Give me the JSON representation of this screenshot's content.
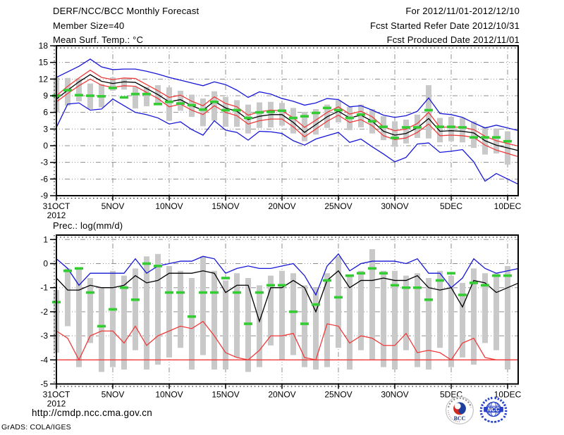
{
  "header": {
    "title": "DERF/NCC/BCC Monthly Forecast",
    "member_size": "Member Size=40",
    "for_range": "For 2012/11/01-2012/12/10",
    "refer_date": "Fcst Started Refer Date 2012/10/31",
    "produced_date": "Fcst Produced Date 2012/11/01"
  },
  "footer": {
    "url": "http://cmdp.ncc.cma.gov.cn",
    "credit": "GrADS: COLA/IGES",
    "bcc_label": "BCC",
    "ncc_label": "NCC"
  },
  "colors": {
    "blue": "#1616d8",
    "red": "#ef3b3b",
    "black": "#000000",
    "green": "#33cc33",
    "bar": "#c9c9c9",
    "grid": "#8f8f8f"
  },
  "chart_data": [
    {
      "name": "temperature-chart",
      "type": "line",
      "title": "Mean Surf. Temp.: °C",
      "x_axis": {
        "start": "31OCT2012",
        "end": "10DEC2012",
        "step_days": 1,
        "n_days": 41
      },
      "x_tick_labels": [
        "31OCT",
        "5NOV",
        "10NOV",
        "15NOV",
        "20NOV",
        "25NOV",
        "30NOV",
        "5DEC",
        "10DEC"
      ],
      "x_sub_label": "2012",
      "ylim": [
        -9,
        18
      ],
      "yticks": [
        18,
        15,
        12,
        9,
        6,
        3,
        0,
        -3,
        -6,
        -9
      ],
      "grid_yticks": [
        15,
        12,
        9,
        6,
        3,
        0,
        -3,
        -6
      ],
      "series": [
        {
          "name": "max-envelope-line",
          "color": "blue",
          "values": [
            12.3,
            13.3,
            14.3,
            15.6,
            14.2,
            13.7,
            13.8,
            13.8,
            13.4,
            12.9,
            12.3,
            11.8,
            11.3,
            10.8,
            11.5,
            11.0,
            10.0,
            8.7,
            9.7,
            9.3,
            8.5,
            8.0,
            7.3,
            7.7,
            8.5,
            8.3,
            7.0,
            7.2,
            6.4,
            5.5,
            5.1,
            5.4,
            6.2,
            8.6,
            5.8,
            5.6,
            5.1,
            4.1,
            3.2,
            3.7,
            3.2
          ]
        },
        {
          "name": "upper-spread-line",
          "color": "red",
          "values": [
            9.0,
            10.7,
            12.2,
            13.6,
            12.3,
            11.9,
            12.2,
            12.1,
            11.0,
            9.9,
            8.7,
            9.1,
            8.0,
            7.2,
            8.8,
            7.6,
            7.0,
            5.5,
            6.1,
            6.4,
            6.3,
            5.0,
            3.3,
            4.6,
            6.0,
            7.0,
            5.7,
            6.2,
            5.2,
            3.4,
            2.7,
            3.0,
            4.0,
            6.0,
            3.3,
            3.4,
            3.3,
            2.9,
            1.7,
            0.9,
            0.4
          ]
        },
        {
          "name": "lower-spread-line",
          "color": "red",
          "values": [
            7.9,
            9.4,
            10.8,
            12.0,
            10.9,
            10.5,
            10.8,
            10.7,
            9.6,
            8.5,
            7.0,
            7.5,
            6.4,
            5.6,
            7.2,
            6.0,
            5.4,
            3.9,
            4.5,
            4.8,
            4.8,
            3.4,
            1.6,
            3.0,
            4.4,
            5.5,
            4.2,
            4.7,
            3.6,
            1.8,
            1.1,
            1.4,
            2.4,
            3.9,
            1.8,
            1.9,
            1.8,
            1.5,
            0.1,
            -0.8,
            -1.4
          ]
        },
        {
          "name": "min-envelope-line",
          "color": "blue",
          "values": [
            3.3,
            7.5,
            7.7,
            6.4,
            6.6,
            8.4,
            7.2,
            6.0,
            5.6,
            5.0,
            3.9,
            4.3,
            2.9,
            1.9,
            4.5,
            2.8,
            2.4,
            1.0,
            2.6,
            2.5,
            2.2,
            0.9,
            0.1,
            1.2,
            1.8,
            2.4,
            0.6,
            1.2,
            -0.2,
            -1.5,
            -2.9,
            -2.1,
            0.3,
            0.5,
            -1.2,
            -1.0,
            -0.7,
            -2.9,
            -6.4,
            -5.0,
            -6.0
          ]
        },
        {
          "name": "ensemble-mean-line",
          "color": "black",
          "values": [
            8.4,
            10.0,
            11.5,
            12.8,
            11.6,
            11.2,
            11.5,
            11.4,
            10.3,
            9.2,
            7.9,
            8.3,
            7.2,
            6.4,
            8.0,
            6.8,
            6.2,
            4.7,
            5.3,
            5.6,
            5.6,
            4.2,
            2.4,
            3.8,
            5.2,
            6.2,
            5.0,
            5.5,
            4.4,
            2.6,
            1.9,
            2.2,
            3.2,
            4.9,
            2.6,
            2.7,
            2.6,
            2.3,
            0.9,
            0.1,
            -0.4
          ]
        }
      ],
      "green_dashes": [
        9.0,
        10.0,
        9.1,
        9.0,
        8.9,
        10.4,
        8.7,
        9.3,
        9.3,
        7.5,
        7.9,
        7.6,
        7.3,
        6.5,
        7.9,
        6.4,
        6.4,
        5.0,
        6.0,
        6.1,
        6.3,
        5.0,
        5.3,
        5.9,
        6.8,
        6.4,
        5.0,
        5.6,
        4.4,
        3.4,
        1.4,
        3.3,
        3.3,
        6.4,
        3.4,
        3.4,
        3.3,
        1.5,
        1.5,
        1.5,
        0.8
      ],
      "bars": [
        [
          6.0,
          12.3
        ],
        [
          7.2,
          12.2
        ],
        [
          8.0,
          12.1
        ],
        [
          6.6,
          11.2
        ],
        [
          6.9,
          11.1
        ],
        [
          9.9,
          12.3
        ],
        [
          10.1,
          12.2
        ],
        [
          6.7,
          10.6
        ],
        [
          7.1,
          10.6
        ],
        [
          7.6,
          10.9
        ],
        [
          4.5,
          10.5
        ],
        [
          6.3,
          9.9
        ],
        [
          5.2,
          9.2
        ],
        [
          3.5,
          8.5
        ],
        [
          4.5,
          9.8
        ],
        [
          3.4,
          8.8
        ],
        [
          3.4,
          8.2
        ],
        [
          2.2,
          7.4
        ],
        [
          3.2,
          7.8
        ],
        [
          3.3,
          7.9
        ],
        [
          3.6,
          7.7
        ],
        [
          2.2,
          6.8
        ],
        [
          0.8,
          6.1
        ],
        [
          2.0,
          6.6
        ],
        [
          3.2,
          7.4
        ],
        [
          4.2,
          8.2
        ],
        [
          2.8,
          7.0
        ],
        [
          3.3,
          7.4
        ],
        [
          2.2,
          6.6
        ],
        [
          1.0,
          5.3
        ],
        [
          -0.2,
          4.4
        ],
        [
          0.4,
          4.7
        ],
        [
          1.4,
          5.6
        ],
        [
          1.3,
          10.9
        ],
        [
          0.6,
          5.0
        ],
        [
          0.8,
          5.2
        ],
        [
          0.6,
          5.0
        ],
        [
          -0.4,
          4.4
        ],
        [
          -1.6,
          3.4
        ],
        [
          -1.4,
          3.1
        ],
        [
          -3.4,
          2.6
        ]
      ]
    },
    {
      "name": "precipitation-chart",
      "type": "line",
      "title": "Prec.: log(mm/d)",
      "x_axis": {
        "start": "31OCT2012",
        "end": "10DEC2012",
        "step_days": 1,
        "n_days": 41
      },
      "x_tick_labels": [
        "31OCT",
        "5NOV",
        "10NOV",
        "15NOV",
        "20NOV",
        "25NOV",
        "30NOV",
        "5DEC",
        "10DEC"
      ],
      "x_sub_label": "2012",
      "ylim": [
        -5,
        1.2
      ],
      "yticks": [
        1,
        0,
        -1,
        -2,
        -3,
        -4,
        -5
      ],
      "grid_yticks": [
        1,
        0,
        -1,
        -2,
        -3,
        -4
      ],
      "flat_line_value": -4,
      "series": [
        {
          "name": "max-envelope-line",
          "color": "blue",
          "values": [
            0.2,
            -0.2,
            -0.9,
            -0.4,
            -0.4,
            -0.4,
            -0.4,
            0.2,
            -0.4,
            -0.1,
            0.0,
            0.1,
            0.1,
            0.3,
            0.2,
            -0.4,
            -0.2,
            -0.1,
            -0.2,
            -0.2,
            -0.1,
            0.0,
            -0.5,
            -1.3,
            -0.1,
            0.4,
            -0.3,
            0.0,
            0.1,
            0.1,
            0.1,
            0.0,
            0.2,
            -0.4,
            -0.4,
            -1.0,
            -0.6,
            0.2,
            -0.2,
            -0.4,
            -0.3
          ]
        },
        {
          "name": "min-envelope-line",
          "color": "red",
          "values": [
            -2.8,
            -3.1,
            -4.0,
            -3.0,
            -2.8,
            -2.8,
            -3.3,
            -2.6,
            -3.4,
            -3.0,
            -2.8,
            -2.6,
            -2.7,
            -2.4,
            -3.0,
            -3.7,
            -3.9,
            -4.0,
            -3.6,
            -3.0,
            -3.0,
            -2.9,
            -3.9,
            -4.0,
            -2.5,
            -2.6,
            -3.3,
            -3.0,
            -3.1,
            -3.4,
            -3.4,
            -2.9,
            -3.7,
            -3.6,
            -3.7,
            -4.0,
            -3.3,
            -3.1,
            -3.9,
            -4.0,
            -4.0
          ]
        },
        {
          "name": "ensemble-mean-line",
          "color": "black",
          "values": [
            -0.6,
            -1.1,
            -1.1,
            -0.9,
            -1.0,
            -1.0,
            -0.9,
            -0.5,
            -0.8,
            -0.7,
            -0.4,
            -0.4,
            -0.4,
            -0.3,
            -0.4,
            -1.2,
            -0.9,
            -0.9,
            -2.4,
            -1.0,
            -1.0,
            -0.7,
            -1.0,
            -2.0,
            -0.7,
            -0.3,
            -1.0,
            -0.7,
            -0.7,
            -0.6,
            -0.7,
            -0.7,
            -0.5,
            -1.0,
            -1.1,
            -1.0,
            -1.8,
            -0.7,
            -0.8,
            -1.2,
            -1.0
          ]
        }
      ],
      "green_dashes": [
        -1.6,
        -0.3,
        -0.2,
        -1.2,
        -2.6,
        -1.9,
        -1.0,
        -1.5,
        0.0,
        -0.1,
        -1.2,
        -1.2,
        -2.2,
        -1.2,
        -1.2,
        -0.6,
        -1.2,
        -2.5,
        -1.2,
        -0.9,
        -0.9,
        -2.0,
        -2.5,
        -1.7,
        -0.7,
        -1.4,
        -0.5,
        -0.4,
        -0.2,
        -0.4,
        -0.9,
        -1.0,
        -1.0,
        -1.5,
        -0.7,
        -0.4,
        -1.3,
        -0.8,
        -0.9,
        -0.5,
        -0.5
      ],
      "bars": [
        [
          -3.7,
          -1.1
        ],
        [
          -2.6,
          -0.2
        ],
        [
          -4.3,
          -0.2
        ],
        [
          -3.3,
          -0.6
        ],
        [
          -4.5,
          -1.0
        ],
        [
          -4.3,
          -0.3
        ],
        [
          -4.4,
          -0.5
        ],
        [
          -3.6,
          -0.2
        ],
        [
          -4.4,
          0.3
        ],
        [
          -4.2,
          0.4
        ],
        [
          -3.9,
          -0.1
        ],
        [
          -3.5,
          -0.3
        ],
        [
          -4.4,
          -0.6
        ],
        [
          -3.8,
          0.3
        ],
        [
          -4.4,
          -0.3
        ],
        [
          -4.4,
          -0.7
        ],
        [
          -3.9,
          -0.4
        ],
        [
          -4.5,
          -0.6
        ],
        [
          -4.3,
          -0.9
        ],
        [
          -3.4,
          -0.5
        ],
        [
          -4.0,
          -0.3
        ],
        [
          -3.8,
          -0.4
        ],
        [
          -4.3,
          -0.9
        ],
        [
          -4.4,
          -1.0
        ],
        [
          -4.3,
          -0.4
        ],
        [
          -3.5,
          0.3
        ],
        [
          -4.4,
          -0.5
        ],
        [
          -3.6,
          -0.3
        ],
        [
          -4.0,
          0.6
        ],
        [
          -4.3,
          -0.3
        ],
        [
          -4.4,
          -0.3
        ],
        [
          -3.6,
          -0.5
        ],
        [
          -4.3,
          -0.4
        ],
        [
          -4.4,
          -0.6
        ],
        [
          -3.5,
          -0.3
        ],
        [
          -4.3,
          -0.5
        ],
        [
          -3.9,
          -0.8
        ],
        [
          -4.2,
          -0.2
        ],
        [
          -3.3,
          -0.4
        ],
        [
          -3.6,
          -0.4
        ],
        [
          -4.4,
          -0.1
        ]
      ]
    }
  ]
}
